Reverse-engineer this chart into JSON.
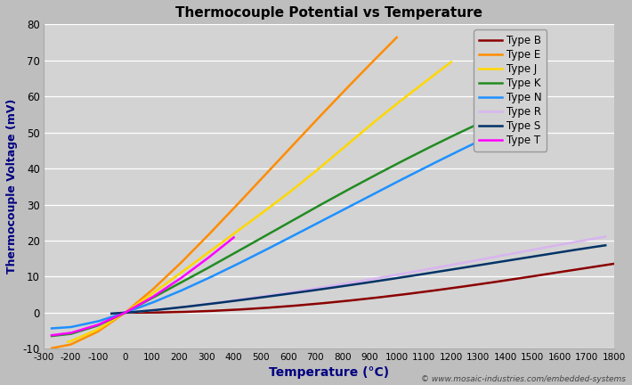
{
  "title": "Thermocouple Potential vs Temperature",
  "xlabel": "Temperature (°C)",
  "ylabel": "Thermocouple Voltage (mV)",
  "xlim": [
    -300,
    1800
  ],
  "ylim": [
    -10,
    80
  ],
  "background_color": "#bebebe",
  "plot_bg_color": "#d3d3d3",
  "grid_color": "#ffffff",
  "copyright": "© www.mosaic-industries.com/embedded-systems",
  "series": {
    "Type B": {
      "color": "#8b0000",
      "lw": 1.8
    },
    "Type E": {
      "color": "#ff8c00",
      "lw": 1.8
    },
    "Type J": {
      "color": "#ffd700",
      "lw": 1.8
    },
    "Type K": {
      "color": "#228b22",
      "lw": 1.8
    },
    "Type N": {
      "color": "#1e90ff",
      "lw": 1.8
    },
    "Type R": {
      "color": "#d8b4f0",
      "lw": 1.8
    },
    "Type S": {
      "color": "#003366",
      "lw": 1.8
    },
    "Type T": {
      "color": "#ff00ff",
      "lw": 1.8
    }
  }
}
